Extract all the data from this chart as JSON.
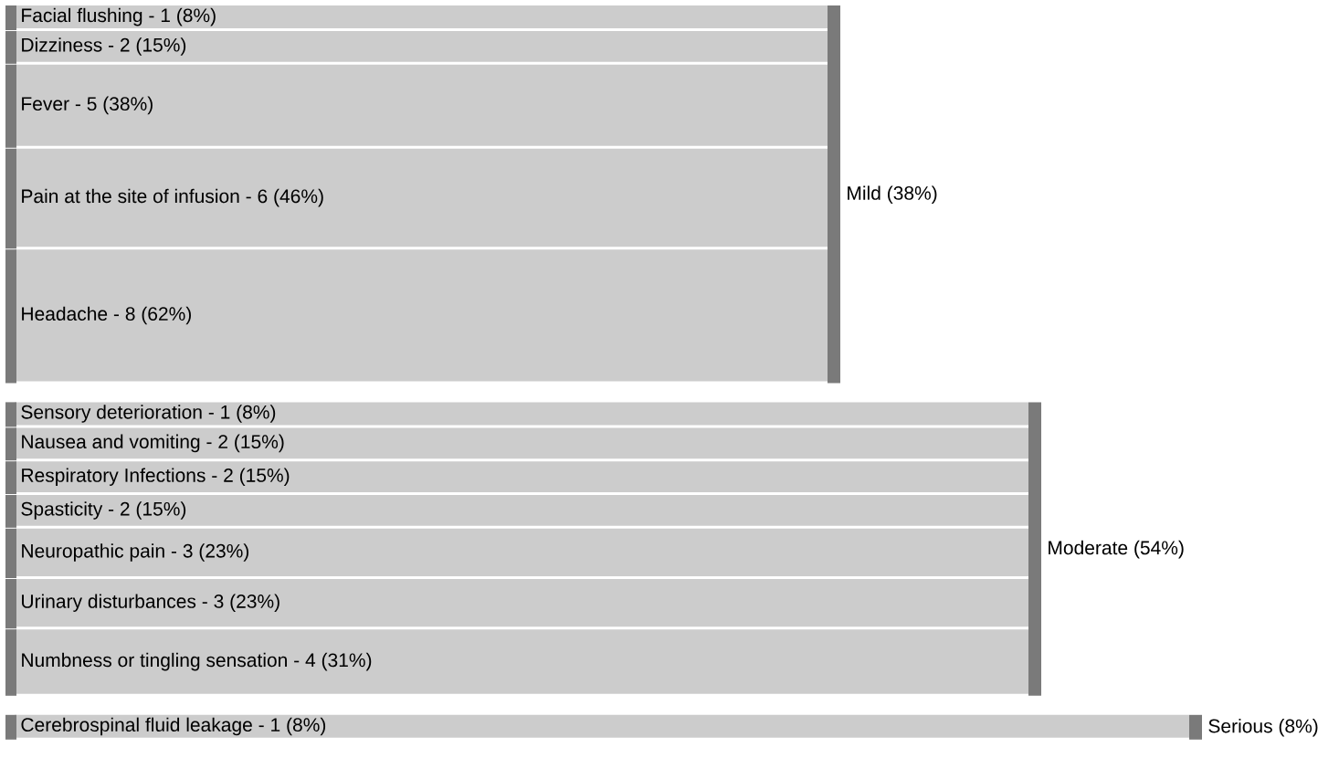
{
  "chart_data": {
    "type": "other",
    "categories": [
      "Facial flushing -",
      "Dizziness -",
      "Fever -",
      "Pain at the site of infusion -",
      "Headache -",
      "Sensory deterioration -",
      "Nausea and vomiting -",
      "Respiratory Infections -",
      "Spasticity -",
      "Neuropathic pain -",
      "Urinary disturbances -",
      "Numbness or tingling sensation -",
      "Cerebrospinal fluid leakage -"
    ],
    "series": [
      {
        "name": "Mild (38%)",
        "color": "#cccccc",
        "values": [
          1,
          2,
          5,
          6,
          8,
          null,
          null,
          null,
          null,
          null,
          null,
          null,
          null
        ],
        "value_labels": [
          "1 (8%)",
          "2 (15%)",
          "5 (38%)",
          "6 (46%)",
          "8 (62%)",
          null,
          null,
          null,
          null,
          null,
          null,
          null,
          null
        ]
      },
      {
        "name": "Moderate (54%)",
        "color": "#cccccc",
        "values": [
          null,
          null,
          null,
          null,
          null,
          1,
          2,
          2,
          2,
          3,
          3,
          4,
          null
        ],
        "value_labels": [
          null,
          null,
          null,
          null,
          null,
          "1 (8%)",
          "2 (15%)",
          "2 (15%)",
          "2 (15%)",
          "3 (23%)",
          "3 (23%)",
          "4 (31%)",
          null
        ]
      },
      {
        "name": "Serious (8%)",
        "color": "#cccccc",
        "values": [
          null,
          null,
          null,
          null,
          null,
          null,
          null,
          null,
          null,
          null,
          null,
          null,
          1
        ],
        "value_labels": [
          null,
          null,
          null,
          null,
          null,
          null,
          null,
          null,
          null,
          null,
          null,
          null,
          "1 (8%)"
        ]
      }
    ]
  }
}
